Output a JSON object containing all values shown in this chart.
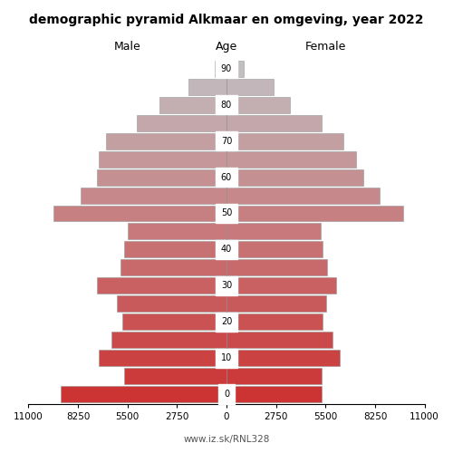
{
  "title": "demographic pyramid Alkmaar en omgeving, year 2022",
  "subtitle": "www.iz.sk/RNL328",
  "male_label": "Male",
  "female_label": "Female",
  "age_label": "Age",
  "age_groups": [
    "0",
    "",
    "10",
    "",
    "20",
    "",
    "30",
    "",
    "40",
    "",
    "50",
    "",
    "60",
    "",
    "70",
    "",
    "80",
    "",
    "90"
  ],
  "male_values": [
    9200,
    5700,
    7100,
    6400,
    5800,
    6100,
    7200,
    5900,
    5700,
    5500,
    9600,
    8100,
    7200,
    7100,
    6700,
    5000,
    3700,
    2100,
    650
  ],
  "female_values": [
    5300,
    5300,
    6300,
    5900,
    5350,
    5550,
    6100,
    5600,
    5350,
    5250,
    9800,
    8500,
    7600,
    7200,
    6500,
    5300,
    3500,
    2600,
    950
  ],
  "xlim": 11000,
  "background_color": "#ffffff",
  "edge_color": "#999999",
  "figsize": [
    5.0,
    5.0
  ],
  "dpi": 100,
  "bar_height": 0.9
}
